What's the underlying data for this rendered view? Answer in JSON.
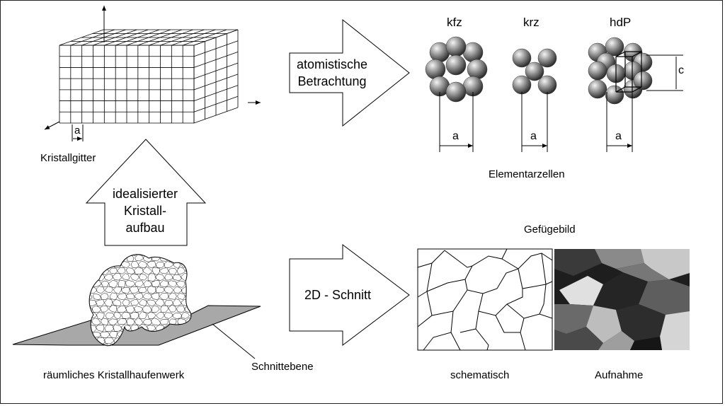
{
  "diagram": {
    "crystal_lattice": {
      "caption": "Kristallgitter",
      "dimension": "a"
    },
    "arrow_atomistic": {
      "line1": "atomistische",
      "line2": "Betrachtung"
    },
    "arrow_idealized": {
      "line1": "idealisierter",
      "line2": "Kristall-",
      "line3": "aufbau"
    },
    "arrow_section": {
      "label": "2D - Schnitt"
    },
    "unit_cells": {
      "caption": "Elementarzellen",
      "cells": [
        {
          "name": "kfz",
          "dimension": "a"
        },
        {
          "name": "krz",
          "dimension": "a"
        },
        {
          "name": "hdP",
          "dimension": "a",
          "height": "c"
        }
      ]
    },
    "aggregate": {
      "caption": "räumliches Kristallhaufenwerk",
      "plane": "Schnittebene"
    },
    "microstructure": {
      "title": "Gefügebild",
      "schematic": "schematisch",
      "photo": "Aufnahme"
    }
  }
}
